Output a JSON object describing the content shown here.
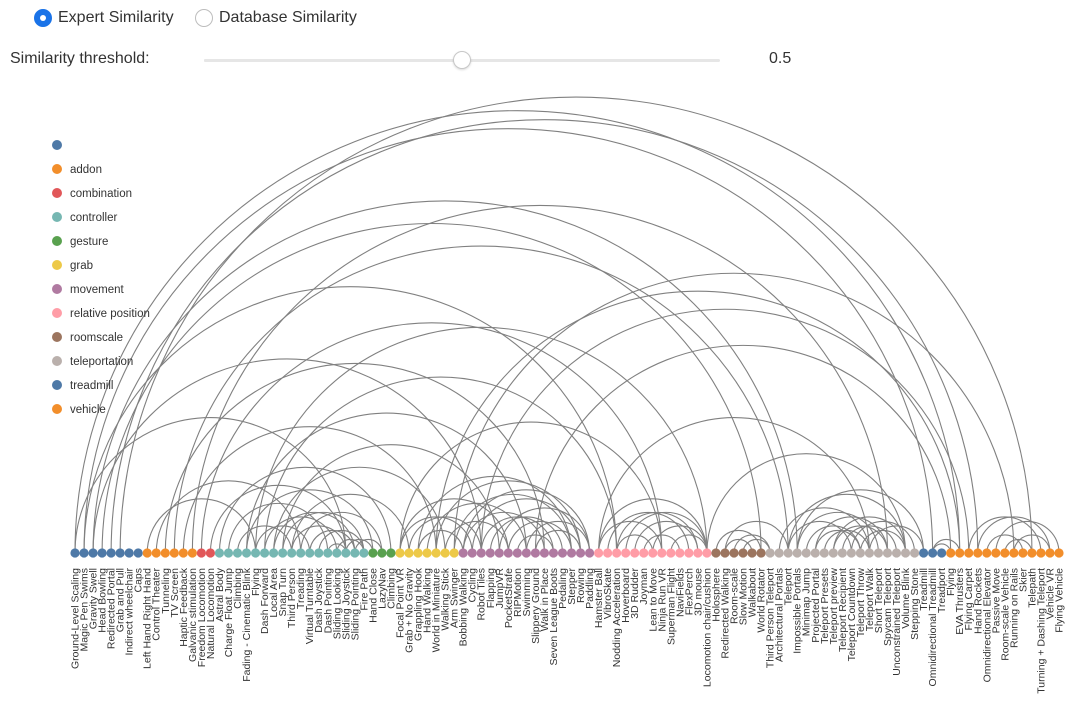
{
  "controls": {
    "mode_options": [
      {
        "label": "Expert Similarity",
        "selected": true
      },
      {
        "label": "Database Similarity",
        "selected": false
      }
    ],
    "threshold_label": "Similarity threshold:",
    "threshold_value": "0.5",
    "threshold_fraction": 0.5
  },
  "legend": [
    {
      "label": "",
      "color": "#4e79a7"
    },
    {
      "label": "addon",
      "color": "#f28e2b"
    },
    {
      "label": "combination",
      "color": "#e15759"
    },
    {
      "label": "controller",
      "color": "#76b7b2"
    },
    {
      "label": "gesture",
      "color": "#59a14f"
    },
    {
      "label": "grab",
      "color": "#edc948"
    },
    {
      "label": "movement",
      "color": "#b07aa1"
    },
    {
      "label": "relative position",
      "color": "#ff9da7"
    },
    {
      "label": "roomscale",
      "color": "#9c755f"
    },
    {
      "label": "teleportation",
      "color": "#bab0ac"
    },
    {
      "label": "treadmill",
      "color": "#4e79a7"
    },
    {
      "label": "vehicle",
      "color": "#f28e2b"
    }
  ],
  "arc_color": "#808080",
  "nodes": [
    {
      "label": "Ground-Level Scaling",
      "group": 0
    },
    {
      "label": "Magic Pen Swims",
      "group": 0
    },
    {
      "label": "Gravity Swell",
      "group": 0
    },
    {
      "label": "Head Bowling",
      "group": 0
    },
    {
      "label": "Redirected Portal",
      "group": 0
    },
    {
      "label": "Grab and Pull",
      "group": 0
    },
    {
      "label": "Indirect wheelchair",
      "group": 0
    },
    {
      "label": "Caps",
      "group": 0
    },
    {
      "label": "Left Hand Right Hand",
      "group": 1
    },
    {
      "label": "Control Theater",
      "group": 1
    },
    {
      "label": "Tunneling",
      "group": 1
    },
    {
      "label": "TV Screen",
      "group": 1
    },
    {
      "label": "Haptic Feedback",
      "group": 1
    },
    {
      "label": "Galvanic stimulation",
      "group": 1
    },
    {
      "label": "Freedom Locomotion",
      "group": 2
    },
    {
      "label": "Natural Locomotion",
      "group": 2
    },
    {
      "label": "Astral Body",
      "group": 3
    },
    {
      "label": "Charge Float Jump",
      "group": 3
    },
    {
      "label": "Climbing",
      "group": 3
    },
    {
      "label": "Fading - Cinematic Blink",
      "group": 3
    },
    {
      "label": "Flying",
      "group": 3
    },
    {
      "label": "Dash Forward",
      "group": 3
    },
    {
      "label": "Local Area",
      "group": 3
    },
    {
      "label": "Snap Turn",
      "group": 3
    },
    {
      "label": "Third Person",
      "group": 3
    },
    {
      "label": "Treading",
      "group": 3
    },
    {
      "label": "Virtual Turntable",
      "group": 3
    },
    {
      "label": "Dash Joystick",
      "group": 3
    },
    {
      "label": "Dash Pointing",
      "group": 3
    },
    {
      "label": "Sliding Looking",
      "group": 3
    },
    {
      "label": "Sliding Joystick",
      "group": 3
    },
    {
      "label": "Sliding Pointing",
      "group": 3
    },
    {
      "label": "Fire Path",
      "group": 3
    },
    {
      "label": "Hand Close",
      "group": 4
    },
    {
      "label": "LazyNav",
      "group": 4
    },
    {
      "label": "Climbing",
      "group": 4
    },
    {
      "label": "Focal Point VR",
      "group": 5
    },
    {
      "label": "Grab + No Gravity",
      "group": 5
    },
    {
      "label": "Grappling Hook",
      "group": 5
    },
    {
      "label": "Hand Walking",
      "group": 5
    },
    {
      "label": "World in Miniature",
      "group": 5
    },
    {
      "label": "Walking Stick",
      "group": 5
    },
    {
      "label": "Arm Swinger",
      "group": 5
    },
    {
      "label": "Bobbing Walking",
      "group": 6
    },
    {
      "label": "Cycling",
      "group": 6
    },
    {
      "label": "Robot Tiles",
      "group": 6
    },
    {
      "label": "Flapping",
      "group": 6
    },
    {
      "label": "JumpVR",
      "group": 6
    },
    {
      "label": "PocketStrafe",
      "group": 6
    },
    {
      "label": "RIPMotion",
      "group": 6
    },
    {
      "label": "Swimming",
      "group": 6
    },
    {
      "label": "Slippery Ground",
      "group": 6
    },
    {
      "label": "Walk in Place",
      "group": 6
    },
    {
      "label": "Seven League Boots",
      "group": 6
    },
    {
      "label": "Pedaling",
      "group": 6
    },
    {
      "label": "Stepper",
      "group": 6
    },
    {
      "label": "Rowing",
      "group": 6
    },
    {
      "label": "Paddling",
      "group": 6
    },
    {
      "label": "Hamster Ball",
      "group": 7
    },
    {
      "label": "VibroSkate",
      "group": 7
    },
    {
      "label": "Nodding Acceleration",
      "group": 7
    },
    {
      "label": "Hoverboard",
      "group": 7
    },
    {
      "label": "3D Rudder",
      "group": 7
    },
    {
      "label": "Joyman",
      "group": 7
    },
    {
      "label": "Lean to Move",
      "group": 7
    },
    {
      "label": "Ninja Run VR",
      "group": 7
    },
    {
      "label": "Superman Flight",
      "group": 7
    },
    {
      "label": "NaviFields",
      "group": 7
    },
    {
      "label": "FlexPerch",
      "group": 7
    },
    {
      "label": "3D mouse",
      "group": 7
    },
    {
      "label": "Locomotion chair/cushion",
      "group": 7
    },
    {
      "label": "Holosphere",
      "group": 8
    },
    {
      "label": "Redirected Walking",
      "group": 8
    },
    {
      "label": "Room-scale",
      "group": 8
    },
    {
      "label": "Slow Motion",
      "group": 8
    },
    {
      "label": "Walkabout",
      "group": 8
    },
    {
      "label": "World Rotator",
      "group": 8
    },
    {
      "label": "Third Person Teleport",
      "group": 9
    },
    {
      "label": "Architectural Portals",
      "group": 9
    },
    {
      "label": "Teleport",
      "group": 9
    },
    {
      "label": "Impossible Portals",
      "group": 9
    },
    {
      "label": "Minimap Jump",
      "group": 9
    },
    {
      "label": "Projected Portal",
      "group": 9
    },
    {
      "label": "Teleport Presets",
      "group": 9
    },
    {
      "label": "Teleport preview",
      "group": 9
    },
    {
      "label": "Teleport Recipient",
      "group": 9
    },
    {
      "label": "Teleport Countdown",
      "group": 9
    },
    {
      "label": "Teleport Throw",
      "group": 9
    },
    {
      "label": "Teleport Walk",
      "group": 9
    },
    {
      "label": "Short Teleport",
      "group": 9
    },
    {
      "label": "Spycam Teleport",
      "group": 9
    },
    {
      "label": "Unconstrained Teleport",
      "group": 9
    },
    {
      "label": "Volume Blink",
      "group": 9
    },
    {
      "label": "Stepping Stone",
      "group": 9
    },
    {
      "label": "Treadmill",
      "group": 10
    },
    {
      "label": "Omnidirectional Treadmill",
      "group": 10
    },
    {
      "label": "Treadport",
      "group": 10
    },
    {
      "label": "Flying",
      "group": 11
    },
    {
      "label": "EVA Thrusters",
      "group": 11
    },
    {
      "label": "Flying Carpet",
      "group": 11
    },
    {
      "label": "Hand Rockets",
      "group": 11
    },
    {
      "label": "Omnidirectional Elevator",
      "group": 11
    },
    {
      "label": "Passive Move",
      "group": 11
    },
    {
      "label": "Room-scale Vehicle",
      "group": 11
    },
    {
      "label": "Running on Rails",
      "group": 11
    },
    {
      "label": "Skier",
      "group": 11
    },
    {
      "label": "Telepath",
      "group": 11
    },
    {
      "label": "Turning + Dashing Teleport",
      "group": 11
    },
    {
      "label": "Vehicle VR",
      "group": 11
    },
    {
      "label": "Flying Vehicle",
      "group": 11
    }
  ],
  "links": [
    [
      0,
      98
    ],
    [
      1,
      95
    ],
    [
      2,
      80
    ],
    [
      3,
      76
    ],
    [
      4,
      100
    ],
    [
      5,
      106
    ],
    [
      0,
      30
    ],
    [
      1,
      60
    ],
    [
      2,
      45
    ],
    [
      8,
      20
    ],
    [
      9,
      25
    ],
    [
      10,
      52
    ],
    [
      11,
      79
    ],
    [
      12,
      40
    ],
    [
      13,
      90
    ],
    [
      14,
      65
    ],
    [
      15,
      30
    ],
    [
      16,
      35
    ],
    [
      17,
      28
    ],
    [
      18,
      24
    ],
    [
      19,
      33
    ],
    [
      20,
      26
    ],
    [
      21,
      29
    ],
    [
      22,
      31
    ],
    [
      23,
      32
    ],
    [
      24,
      30
    ],
    [
      25,
      34
    ],
    [
      26,
      31
    ],
    [
      27,
      32
    ],
    [
      28,
      30
    ],
    [
      29,
      32
    ],
    [
      30,
      33
    ],
    [
      31,
      34
    ],
    [
      19,
      50
    ],
    [
      20,
      70
    ],
    [
      21,
      60
    ],
    [
      22,
      41
    ],
    [
      23,
      47
    ],
    [
      24,
      37
    ],
    [
      36,
      44
    ],
    [
      37,
      45
    ],
    [
      38,
      43
    ],
    [
      39,
      50
    ],
    [
      40,
      56
    ],
    [
      41,
      48
    ],
    [
      42,
      55
    ],
    [
      36,
      65
    ],
    [
      38,
      55
    ],
    [
      36,
      48
    ],
    [
      43,
      52
    ],
    [
      44,
      56
    ],
    [
      45,
      53
    ],
    [
      46,
      54
    ],
    [
      47,
      57
    ],
    [
      48,
      55
    ],
    [
      49,
      53
    ],
    [
      50,
      57
    ],
    [
      51,
      56
    ],
    [
      43,
      57
    ],
    [
      40,
      98
    ],
    [
      42,
      104
    ],
    [
      45,
      99
    ],
    [
      51,
      97
    ],
    [
      58,
      65
    ],
    [
      59,
      68
    ],
    [
      60,
      64
    ],
    [
      61,
      70
    ],
    [
      62,
      69
    ],
    [
      63,
      67
    ],
    [
      64,
      70
    ],
    [
      66,
      70
    ],
    [
      58,
      70
    ],
    [
      60,
      69
    ],
    [
      58,
      88
    ],
    [
      70,
      92
    ],
    [
      72,
      79
    ],
    [
      71,
      76
    ],
    [
      72,
      75
    ],
    [
      73,
      77
    ],
    [
      74,
      77
    ],
    [
      78,
      88
    ],
    [
      79,
      86
    ],
    [
      80,
      89
    ],
    [
      81,
      87
    ],
    [
      82,
      90
    ],
    [
      83,
      88
    ],
    [
      84,
      92
    ],
    [
      85,
      91
    ],
    [
      86,
      93
    ],
    [
      87,
      92
    ],
    [
      88,
      94
    ],
    [
      80,
      94
    ],
    [
      79,
      92
    ],
    [
      82,
      87
    ],
    [
      84,
      90
    ],
    [
      95,
      98
    ],
    [
      95,
      97
    ],
    [
      97,
      110
    ],
    [
      99,
      107
    ],
    [
      100,
      108
    ],
    [
      101,
      105
    ],
    [
      102,
      109
    ],
    [
      103,
      106
    ],
    [
      104,
      108
    ],
    [
      98,
      110
    ]
  ]
}
